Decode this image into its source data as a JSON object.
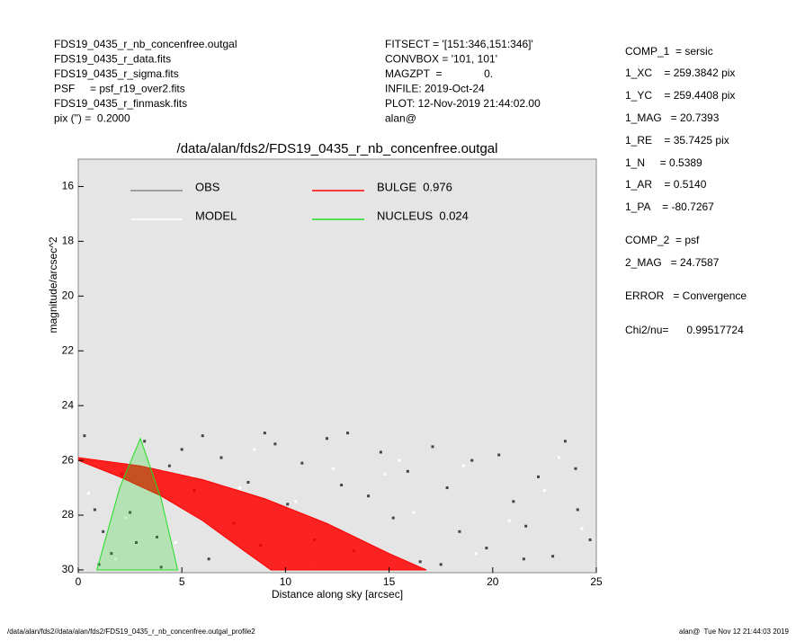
{
  "header_left": [
    "FDS19_0435_r_nb_concenfree.outgal",
    "FDS19_0435_r_data.fits",
    "FDS19_0435_r_sigma.fits",
    "PSF     = psf_r19_over2.fits",
    "FDS19_0435_r_finmask.fits",
    "pix (\") =  0.2000"
  ],
  "header_middle": [
    "FITSECT = '[151:346,151:346]'",
    "CONVBOX = '101, 101'",
    "MAGZPT  =              0.",
    "INFILE: 2019-Oct-24",
    "PLOT: 12-Nov-2019 21:44:02.00",
    "alan@"
  ],
  "params": [
    "COMP_1  = sersic",
    "1_XC    = 259.3842 pix",
    "1_YC    = 259.4408 pix",
    "1_MAG   = 20.7393",
    "1_RE    = 35.7425 pix",
    "1_N     = 0.5389",
    "1_AR    = 0.5140",
    "1_PA    = -80.7267",
    "COMP_2  = psf",
    "2_MAG   = 24.7587",
    "ERROR   = Convergence",
    "Chi2/nu=      0.99517724"
  ],
  "footer_left": "/data/alan/fds2//data/alan/fds2/FDS19_0435_r_nb_concenfree.outgal_profile2",
  "footer_right": "alan@  Tue Nov 12 21:44:03 2019",
  "chart_data": {
    "type": "scatter",
    "title": "/data/alan/fds2/FDS19_0435_r_nb_concenfree.outgal",
    "x_label": "Distance along sky [arcsec]",
    "y_label": "magnitude/arcsec^2",
    "xlim": [
      0,
      25
    ],
    "ylim": [
      30.1,
      15
    ],
    "xticks": [
      0,
      5,
      10,
      15,
      20,
      25
    ],
    "yticks": [
      16,
      18,
      20,
      22,
      24,
      26,
      28,
      30
    ],
    "background": "#e5e5e5",
    "series": [
      {
        "name": "OBS",
        "kind": "points",
        "color": "#444444",
        "legend_color": "#888888",
        "x": [
          0.3,
          0.8,
          1.2,
          1.6,
          2.1,
          2.5,
          3.2,
          3.8,
          4.4,
          5.0,
          5.6,
          6.3,
          6.9,
          7.5,
          8.2,
          8.8,
          9.5,
          10.1,
          10.8,
          11.4,
          12.0,
          12.7,
          13.3,
          14.0,
          14.6,
          15.2,
          15.9,
          16.5,
          17.1,
          17.8,
          18.4,
          19.0,
          19.7,
          20.3,
          21.0,
          21.6,
          22.2,
          22.9,
          23.5,
          24.1,
          24.7,
          1.0,
          2.8,
          6.0,
          9.0,
          13.0,
          17.5,
          21.5,
          24.0,
          4.0
        ],
        "values": [
          25.1,
          27.8,
          28.6,
          29.4,
          26.5,
          27.9,
          25.3,
          28.8,
          26.2,
          25.6,
          27.1,
          29.6,
          25.9,
          28.3,
          26.8,
          29.1,
          25.4,
          27.6,
          26.1,
          28.9,
          25.2,
          26.9,
          29.3,
          27.3,
          25.7,
          28.1,
          26.4,
          29.7,
          25.5,
          27.0,
          28.6,
          26.0,
          29.2,
          25.8,
          27.5,
          28.4,
          26.6,
          29.5,
          25.3,
          27.8,
          28.9,
          29.8,
          29.0,
          25.1,
          25.0,
          25.0,
          29.8,
          29.6,
          26.3,
          29.9
        ]
      },
      {
        "name": "MODEL",
        "kind": "points",
        "color": "#ffffff",
        "legend_color": "#ffffff",
        "x": [
          0.5,
          1.8,
          3.5,
          5.5,
          7.8,
          10.5,
          12.3,
          14.8,
          16.2,
          18.6,
          20.8,
          22.5,
          24.3,
          4.7,
          8.5,
          11.2,
          15.5,
          19.2,
          23.2,
          2.3
        ],
        "values": [
          27.2,
          29.6,
          27.0,
          26.6,
          27.0,
          27.5,
          26.3,
          26.5,
          27.9,
          26.2,
          28.2,
          27.1,
          28.5,
          29.0,
          25.6,
          29.8,
          26.0,
          29.4,
          25.9,
          28.1
        ]
      },
      {
        "name": "BULGE  0.976",
        "kind": "band",
        "color": "#ff0000",
        "legend_color": "#ff0000",
        "x": [
          0,
          3,
          6,
          9,
          12,
          15,
          16.8
        ],
        "values": [
          25.9,
          26.2,
          26.7,
          27.4,
          28.3,
          29.4,
          30
        ],
        "x_inner": [
          0,
          2,
          4,
          6,
          8,
          9.3
        ],
        "values_inner": [
          26,
          26.6,
          27.3,
          28.2,
          29.3,
          30
        ]
      },
      {
        "name": "NUCLEUS  0.024",
        "kind": "polygon",
        "color": "#22dd22",
        "legend_color": "#22dd22",
        "x": [
          0.9,
          2.0,
          3.0,
          4.0,
          4.8
        ],
        "values": [
          30,
          27.0,
          25.2,
          27.4,
          30
        ]
      }
    ]
  }
}
